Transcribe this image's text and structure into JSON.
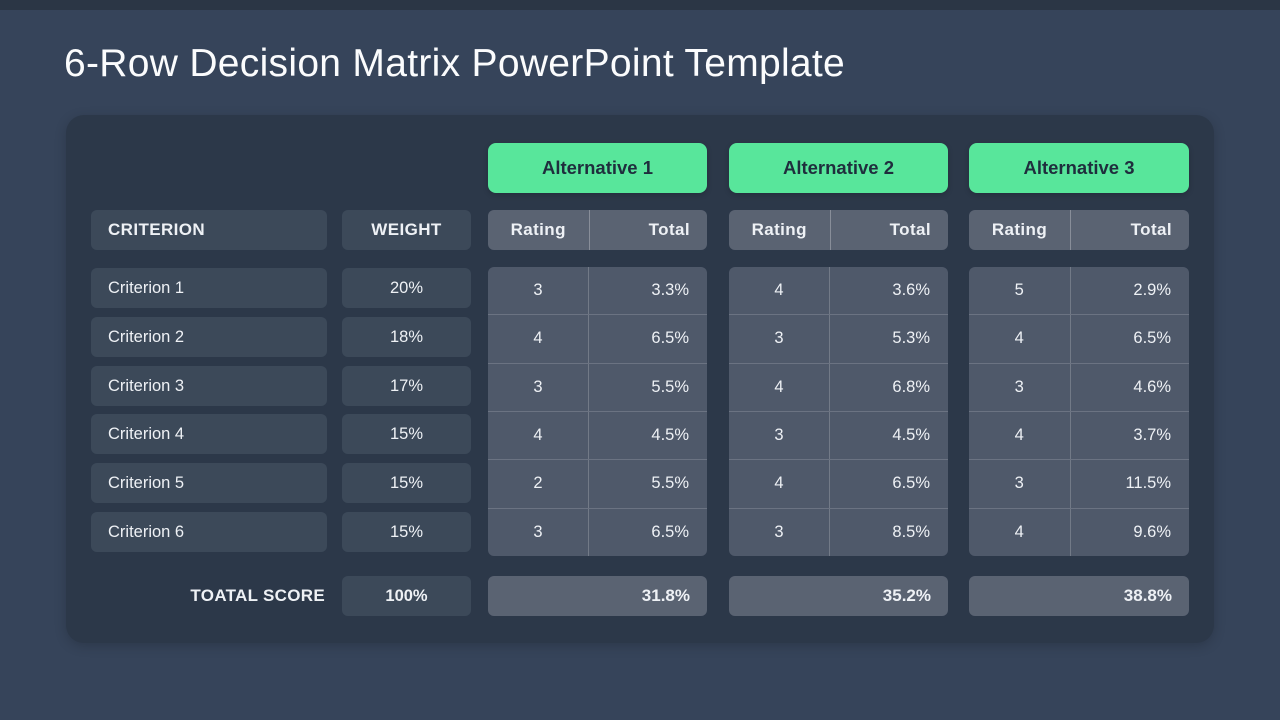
{
  "page": {
    "title": "6-Row Decision Matrix PowerPoint Template"
  },
  "table": {
    "criterion_header": "CRITERION",
    "weight_header": "WEIGHT",
    "rating_header": "Rating",
    "total_header": "Total",
    "total_score_label": "TOATAL SCORE",
    "total_weight": "100%"
  },
  "criteria": [
    {
      "label": "Criterion 1",
      "weight": "20%"
    },
    {
      "label": "Criterion 2",
      "weight": "18%"
    },
    {
      "label": "Criterion 3",
      "weight": "17%"
    },
    {
      "label": "Criterion 4",
      "weight": "15%"
    },
    {
      "label": "Criterion 5",
      "weight": "15%"
    },
    {
      "label": "Criterion 6",
      "weight": "15%"
    }
  ],
  "alternatives": [
    {
      "name": "Alternative 1",
      "rows": [
        {
          "rating": "3",
          "total": "3.3%"
        },
        {
          "rating": "4",
          "total": "6.5%"
        },
        {
          "rating": "3",
          "total": "5.5%"
        },
        {
          "rating": "4",
          "total": "4.5%"
        },
        {
          "rating": "2",
          "total": "5.5%"
        },
        {
          "rating": "3",
          "total": "6.5%"
        }
      ],
      "total": "31.8%"
    },
    {
      "name": "Alternative 2",
      "rows": [
        {
          "rating": "4",
          "total": "3.6%"
        },
        {
          "rating": "3",
          "total": "5.3%"
        },
        {
          "rating": "4",
          "total": "6.8%"
        },
        {
          "rating": "3",
          "total": "4.5%"
        },
        {
          "rating": "4",
          "total": "6.5%"
        },
        {
          "rating": "3",
          "total": "8.5%"
        }
      ],
      "total": "35.2%"
    },
    {
      "name": "Alternative 3",
      "rows": [
        {
          "rating": "5",
          "total": "2.9%"
        },
        {
          "rating": "4",
          "total": "6.5%"
        },
        {
          "rating": "3",
          "total": "4.6%"
        },
        {
          "rating": "4",
          "total": "3.7%"
        },
        {
          "rating": "3",
          "total": "11.5%"
        },
        {
          "rating": "4",
          "total": "9.6%"
        }
      ],
      "total": "38.8%"
    }
  ],
  "colors": {
    "background": "#36445A",
    "top_strip": "#2B3645",
    "panel": "#2C3849",
    "cell": "#3C4959",
    "data_block": "#4F596A",
    "header_gray": "#5A6372",
    "accent_green": "#58E69B",
    "green_text": "#1F2E3D",
    "text": "#EEF1F5"
  },
  "chart_data": {
    "type": "table",
    "title": "6-Row Decision Matrix",
    "columns": [
      "Criterion",
      "Weight",
      "Alternative 1 Rating",
      "Alternative 1 Total",
      "Alternative 2 Rating",
      "Alternative 2 Total",
      "Alternative 3 Rating",
      "Alternative 3 Total"
    ],
    "rows": [
      [
        "Criterion 1",
        "20%",
        3,
        "3.3%",
        4,
        "3.6%",
        5,
        "2.9%"
      ],
      [
        "Criterion 2",
        "18%",
        4,
        "6.5%",
        3,
        "5.3%",
        4,
        "6.5%"
      ],
      [
        "Criterion 3",
        "17%",
        3,
        "5.5%",
        4,
        "6.8%",
        3,
        "4.6%"
      ],
      [
        "Criterion 4",
        "15%",
        4,
        "4.5%",
        3,
        "4.5%",
        4,
        "3.7%"
      ],
      [
        "Criterion 5",
        "15%",
        2,
        "5.5%",
        4,
        "6.5%",
        3,
        "11.5%"
      ],
      [
        "Criterion 6",
        "15%",
        3,
        "6.5%",
        3,
        "8.5%",
        4,
        "9.6%"
      ]
    ],
    "totals_row": [
      "TOATAL SCORE",
      "100%",
      "",
      "31.8%",
      "",
      "35.2%",
      "",
      "38.8%"
    ]
  }
}
